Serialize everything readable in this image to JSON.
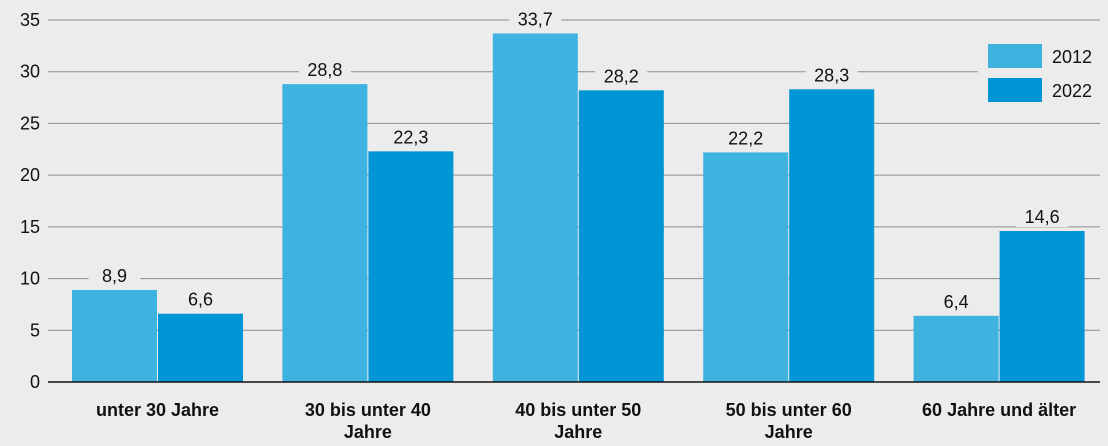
{
  "chart_data": {
    "type": "bar",
    "title": "",
    "xlabel": "",
    "ylabel": "",
    "categories": [
      [
        "unter 30 Jahre"
      ],
      [
        "30 bis unter 40",
        "Jahre"
      ],
      [
        "40 bis unter 50",
        "Jahre"
      ],
      [
        "50 bis unter 60",
        "Jahre"
      ],
      [
        "60 Jahre und älter"
      ]
    ],
    "series": [
      {
        "name": "2012",
        "color": "#3fb3e0",
        "values": [
          8.9,
          28.8,
          33.7,
          22.2,
          6.4
        ],
        "labels": [
          "8,9",
          "28,8",
          "33,7",
          "22,2",
          "6,4"
        ]
      },
      {
        "name": "2022",
        "color": "#0096d6",
        "values": [
          6.6,
          22.3,
          28.2,
          28.3,
          14.6
        ],
        "labels": [
          "6,6",
          "22,3",
          "28,2",
          "28,3",
          "14,6"
        ]
      }
    ],
    "ylim": [
      0,
      35
    ],
    "yticks": [
      0,
      5,
      10,
      15,
      20,
      25,
      30,
      35
    ],
    "grid": true,
    "legend": "top-right"
  }
}
